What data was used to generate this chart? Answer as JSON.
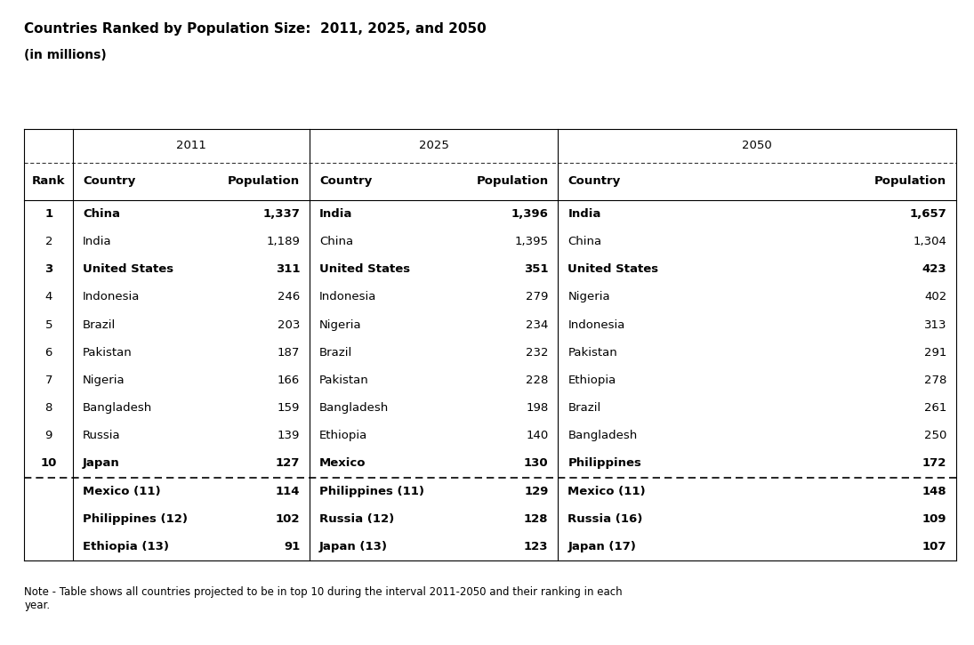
{
  "title_line1": "Countries Ranked by Population Size:  2011, 2025, and 2050",
  "title_line2": "(in millions)",
  "note": "Note - Table shows all countries projected to be in top 10 during the interval 2011-2050 and their ranking in each\nyear.",
  "rows": [
    {
      "rank": "1",
      "c11": "China",
      "p11": "1,337",
      "c25": "India",
      "p25": "1,396",
      "c50": "India",
      "p50": "1,657",
      "dashed": false
    },
    {
      "rank": "2",
      "c11": "India",
      "p11": "1,189",
      "c25": "China",
      "p25": "1,395",
      "c50": "China",
      "p50": "1,304",
      "dashed": false
    },
    {
      "rank": "3",
      "c11": "United States",
      "p11": "311",
      "c25": "United States",
      "p25": "351",
      "c50": "United States",
      "p50": "423",
      "dashed": false
    },
    {
      "rank": "4",
      "c11": "Indonesia",
      "p11": "246",
      "c25": "Indonesia",
      "p25": "279",
      "c50": "Nigeria",
      "p50": "402",
      "dashed": false
    },
    {
      "rank": "5",
      "c11": "Brazil",
      "p11": "203",
      "c25": "Nigeria",
      "p25": "234",
      "c50": "Indonesia",
      "p50": "313",
      "dashed": false
    },
    {
      "rank": "6",
      "c11": "Pakistan",
      "p11": "187",
      "c25": "Brazil",
      "p25": "232",
      "c50": "Pakistan",
      "p50": "291",
      "dashed": false
    },
    {
      "rank": "7",
      "c11": "Nigeria",
      "p11": "166",
      "c25": "Pakistan",
      "p25": "228",
      "c50": "Ethiopia",
      "p50": "278",
      "dashed": false
    },
    {
      "rank": "8",
      "c11": "Bangladesh",
      "p11": "159",
      "c25": "Bangladesh",
      "p25": "198",
      "c50": "Brazil",
      "p50": "261",
      "dashed": false
    },
    {
      "rank": "9",
      "c11": "Russia",
      "p11": "139",
      "c25": "Ethiopia",
      "p25": "140",
      "c50": "Bangladesh",
      "p50": "250",
      "dashed": false
    },
    {
      "rank": "10",
      "c11": "Japan",
      "p11": "127",
      "c25": "Mexico",
      "p25": "130",
      "c50": "Philippines",
      "p50": "172",
      "dashed": true
    }
  ],
  "extra_rows": [
    {
      "c11": "Mexico (11)",
      "p11": "114",
      "c25": "Philippines (11)",
      "p25": "129",
      "c50": "Mexico (11)",
      "p50": "148"
    },
    {
      "c11": "Philippines (12)",
      "p11": "102",
      "c25": "Russia (12)",
      "p25": "128",
      "c50": "Russia (16)",
      "p50": "109"
    },
    {
      "c11": "Ethiopia (13)",
      "p11": "91",
      "c25": "Japan (13)",
      "p25": "123",
      "c50": "Japan (17)",
      "p50": "107"
    }
  ],
  "bold_rows": [
    0,
    2,
    9
  ],
  "background_color": "#ffffff"
}
